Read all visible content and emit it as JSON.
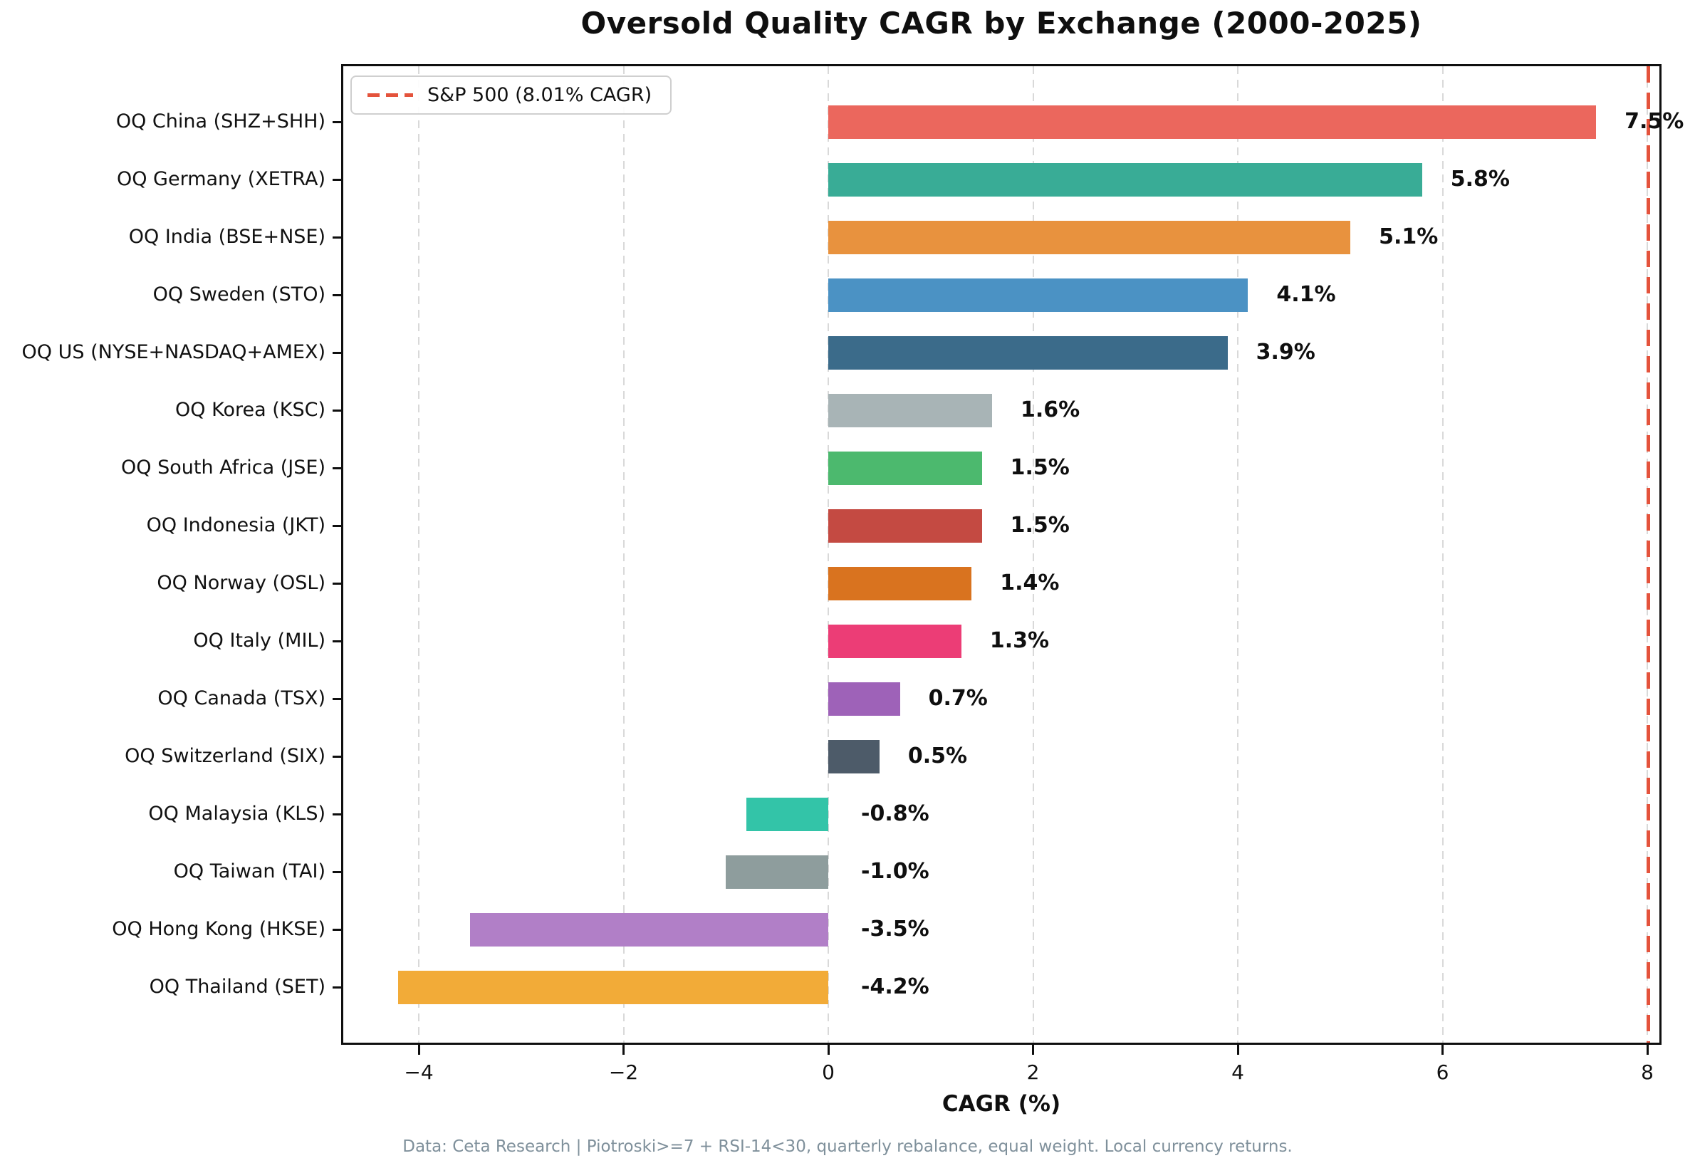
{
  "footer": "Data: Ceta Research | Piotroski>=7 + RSI-14<30, quarterly rebalance, equal weight. Local currency returns.",
  "chart_data": {
    "type": "bar",
    "orientation": "horizontal",
    "title": "Oversold Quality CAGR by Exchange (2000-2025)",
    "xlabel": "CAGR (%)",
    "categories": [
      "OQ China (SHZ+SHH)",
      "OQ Germany (XETRA)",
      "OQ India (BSE+NSE)",
      "OQ Sweden (STO)",
      "OQ US (NYSE+NASDAQ+AMEX)",
      "OQ Korea (KSC)",
      "OQ South Africa (JSE)",
      "OQ Indonesia (JKT)",
      "OQ Norway (OSL)",
      "OQ Italy (MIL)",
      "OQ Canada (TSX)",
      "OQ Switzerland (SIX)",
      "OQ Malaysia (KLS)",
      "OQ Taiwan (TAI)",
      "OQ Hong Kong (HKSE)",
      "OQ Thailand (SET)"
    ],
    "values": [
      7.5,
      5.8,
      5.1,
      4.1,
      3.9,
      1.6,
      1.5,
      1.5,
      1.4,
      1.3,
      0.7,
      0.5,
      -0.8,
      -1.0,
      -3.5,
      -4.2
    ],
    "value_labels": [
      "7.5%",
      "5.8%",
      "5.1%",
      "4.1%",
      "3.9%",
      "1.6%",
      "1.5%",
      "1.5%",
      "1.4%",
      "1.3%",
      "0.7%",
      "0.5%",
      "-0.8%",
      "-1.0%",
      "-3.5%",
      "-4.2%"
    ],
    "bar_colors": [
      "#eb675d",
      "#39ac96",
      "#e8923e",
      "#4b92c4",
      "#3b6b8a",
      "#a8b4b6",
      "#4cb96e",
      "#c44a42",
      "#d9731f",
      "#ec3d76",
      "#9e62b8",
      "#4d5b69",
      "#33c4a8",
      "#8e9d9d",
      "#b17fc7",
      "#f2ab38"
    ],
    "x_ticks": [
      -4,
      -2,
      0,
      2,
      4,
      6,
      8
    ],
    "x_tick_labels": [
      "−4",
      "−2",
      "0",
      "2",
      "4",
      "6",
      "8"
    ],
    "xlim": [
      -4.76,
      8.14
    ],
    "grid": {
      "axis": "x",
      "style": "dashed",
      "color": "#d9d9d9"
    },
    "legend": {
      "position": "upper-left",
      "label": "S&P 500 (8.01% CAGR)"
    },
    "reference_line": {
      "value": 8.01,
      "axis": "x",
      "style": "dashed",
      "color": "#e4533c",
      "label": "S&P 500 (8.01% CAGR)"
    }
  }
}
